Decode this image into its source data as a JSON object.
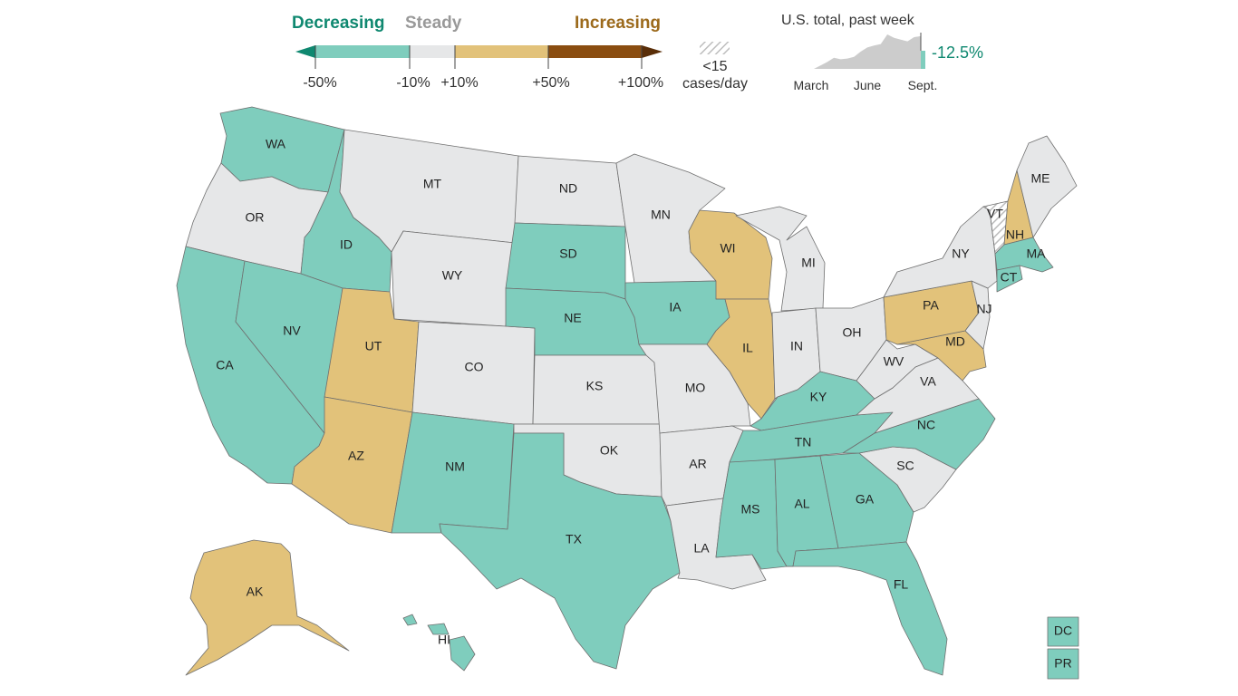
{
  "legend": {
    "categories": [
      {
        "label": "Decreasing",
        "color": "#0f8870"
      },
      {
        "label": "Steady",
        "color": "#999999"
      },
      {
        "label": "Increasing",
        "color": "#9c6a1c"
      }
    ],
    "bins": [
      {
        "from": "-50%",
        "to": "-10%",
        "color": "#7fcdbd"
      },
      {
        "from": "-10%",
        "to": "+10%",
        "color": "#e6e7e8"
      },
      {
        "from": "+10%",
        "to": "+50%",
        "color": "#e2c27a"
      },
      {
        "from": "+50%",
        "to": "+100%",
        "color": "#8a4d10"
      }
    ],
    "extreme_low_color": "#0f8870",
    "extreme_high_color": "#5a2e08",
    "ticks": [
      "-50%",
      "-10%",
      "+10%",
      "+50%",
      "+100%"
    ],
    "hatch_label_line1": "<15",
    "hatch_label_line2": "cases/day"
  },
  "sparkline": {
    "title": "U.S. total, past week",
    "change": "-12.5%",
    "change_color": "#0f8870",
    "x_labels": [
      "March",
      "June",
      "Sept."
    ],
    "relative_levels": [
      0.0,
      0.1,
      0.2,
      0.32,
      0.28,
      0.3,
      0.35,
      0.5,
      0.62,
      0.68,
      0.72,
      1.0,
      0.9,
      0.85,
      0.8,
      0.92,
      0.95
    ],
    "fill_color": "#cccccc"
  },
  "colors": {
    "decreasing": "#7fcdbd",
    "steady": "#e6e7e8",
    "increasing": "#e2c27a",
    "hatch": "#cccccc"
  },
  "states": [
    {
      "abbr": "WA",
      "status": "decreasing"
    },
    {
      "abbr": "OR",
      "status": "steady"
    },
    {
      "abbr": "CA",
      "status": "decreasing"
    },
    {
      "abbr": "ID",
      "status": "decreasing"
    },
    {
      "abbr": "NV",
      "status": "decreasing"
    },
    {
      "abbr": "MT",
      "status": "steady"
    },
    {
      "abbr": "WY",
      "status": "steady"
    },
    {
      "abbr": "UT",
      "status": "increasing"
    },
    {
      "abbr": "AZ",
      "status": "increasing"
    },
    {
      "abbr": "CO",
      "status": "steady"
    },
    {
      "abbr": "NM",
      "status": "decreasing"
    },
    {
      "abbr": "ND",
      "status": "steady"
    },
    {
      "abbr": "SD",
      "status": "decreasing"
    },
    {
      "abbr": "NE",
      "status": "decreasing"
    },
    {
      "abbr": "KS",
      "status": "steady"
    },
    {
      "abbr": "OK",
      "status": "steady"
    },
    {
      "abbr": "TX",
      "status": "decreasing"
    },
    {
      "abbr": "MN",
      "status": "steady"
    },
    {
      "abbr": "IA",
      "status": "decreasing"
    },
    {
      "abbr": "MO",
      "status": "steady"
    },
    {
      "abbr": "AR",
      "status": "steady"
    },
    {
      "abbr": "LA",
      "status": "steady"
    },
    {
      "abbr": "WI",
      "status": "increasing"
    },
    {
      "abbr": "IL",
      "status": "increasing"
    },
    {
      "abbr": "MI",
      "status": "steady"
    },
    {
      "abbr": "IN",
      "status": "steady"
    },
    {
      "abbr": "OH",
      "status": "steady"
    },
    {
      "abbr": "KY",
      "status": "decreasing"
    },
    {
      "abbr": "TN",
      "status": "decreasing"
    },
    {
      "abbr": "MS",
      "status": "decreasing"
    },
    {
      "abbr": "AL",
      "status": "decreasing"
    },
    {
      "abbr": "GA",
      "status": "decreasing"
    },
    {
      "abbr": "FL",
      "status": "decreasing"
    },
    {
      "abbr": "SC",
      "status": "steady"
    },
    {
      "abbr": "NC",
      "status": "decreasing"
    },
    {
      "abbr": "VA",
      "status": "steady"
    },
    {
      "abbr": "WV",
      "status": "steady"
    },
    {
      "abbr": "MD",
      "status": "increasing"
    },
    {
      "abbr": "PA",
      "status": "increasing"
    },
    {
      "abbr": "NJ",
      "status": "steady"
    },
    {
      "abbr": "NY",
      "status": "steady"
    },
    {
      "abbr": "VT",
      "status": "hatch"
    },
    {
      "abbr": "NH",
      "status": "increasing"
    },
    {
      "abbr": "ME",
      "status": "steady"
    },
    {
      "abbr": "MA",
      "status": "decreasing"
    },
    {
      "abbr": "CT",
      "status": "decreasing"
    },
    {
      "abbr": "AK",
      "status": "increasing"
    },
    {
      "abbr": "HI",
      "status": "decreasing"
    },
    {
      "abbr": "DC",
      "status": "decreasing"
    },
    {
      "abbr": "PR",
      "status": "decreasing"
    }
  ]
}
